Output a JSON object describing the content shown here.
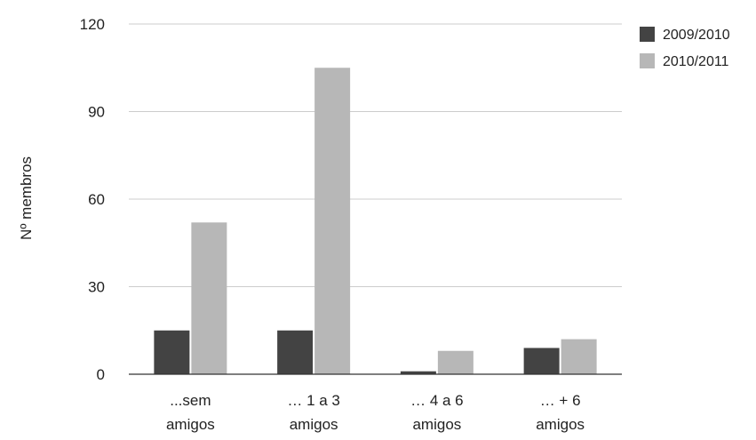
{
  "chart_data": {
    "type": "bar",
    "title": "",
    "xlabel": "",
    "ylabel": "Nº membros",
    "ylim": [
      0,
      120
    ],
    "yticks": [
      0,
      30,
      60,
      90,
      120
    ],
    "grid": true,
    "legend_position": "top-right",
    "categories": [
      [
        "...sem",
        "amigos"
      ],
      [
        "… 1 a 3",
        "amigos"
      ],
      [
        "… 4 a 6",
        "amigos"
      ],
      [
        "… + 6",
        "amigos"
      ]
    ],
    "series": [
      {
        "name": "2009/2010",
        "color": "#434343",
        "values": [
          15,
          15,
          1,
          9
        ]
      },
      {
        "name": "2010/2011",
        "color": "#b7b7b7",
        "values": [
          52,
          105,
          8,
          12
        ]
      }
    ]
  }
}
